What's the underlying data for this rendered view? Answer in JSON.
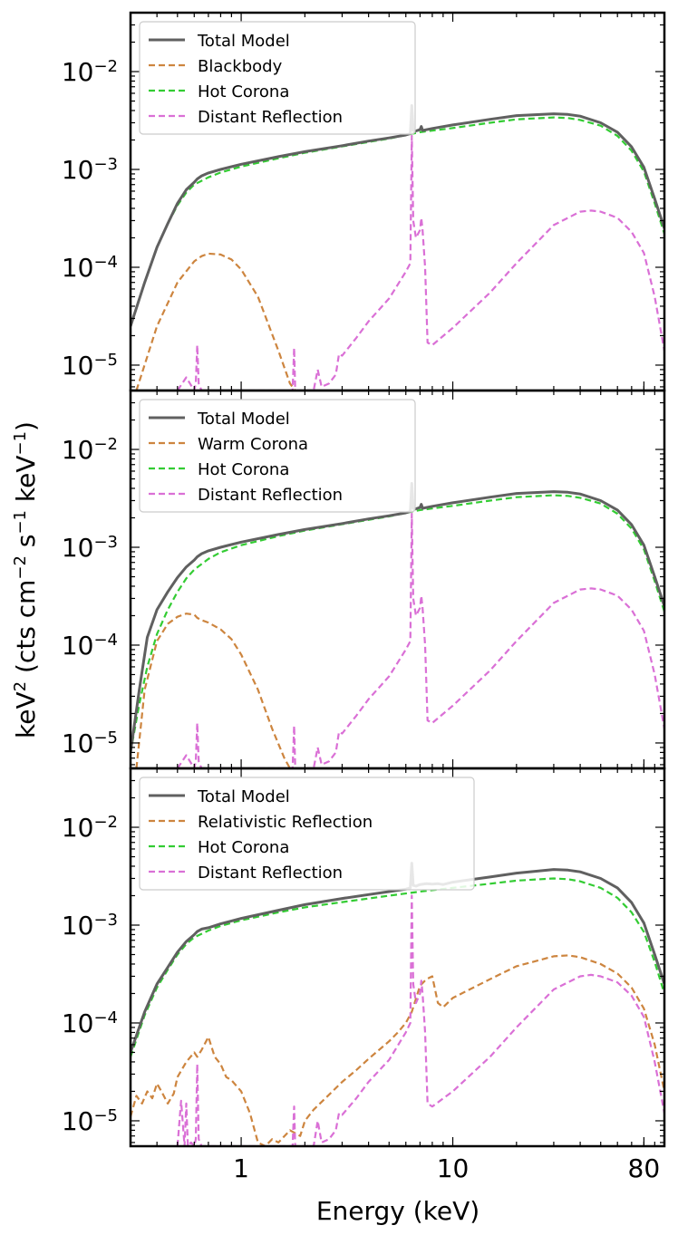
{
  "figure": {
    "ylabel_parts": [
      "keV",
      "2",
      " (cts cm",
      "−2",
      " s",
      "−1",
      " keV",
      "−1",
      ")"
    ],
    "xlabel": "Energy (keV)",
    "x_tick_labels": [
      "1",
      "10",
      "80"
    ],
    "y_tick_labels": [
      {
        "base": "10",
        "exp": "−2"
      },
      {
        "base": "10",
        "exp": "−3"
      },
      {
        "base": "10",
        "exp": "−4"
      },
      {
        "base": "10",
        "exp": "−5"
      }
    ]
  },
  "chart_data": [
    {
      "type": "line",
      "xscale": "log",
      "yscale": "log",
      "xlim": [
        0.3,
        100
      ],
      "ylim": [
        5.5e-06,
        0.04
      ],
      "x_ticks": [
        1,
        10,
        80
      ],
      "y_ticks": [
        0.01,
        0.001,
        0.0001,
        1e-05
      ],
      "legend_position": "top-left",
      "series": [
        {
          "name": "Total Model",
          "color": "#606060",
          "style": "solid",
          "x": [
            0.3,
            0.35,
            0.4,
            0.45,
            0.5,
            0.55,
            0.6,
            0.62,
            0.65,
            0.7,
            0.8,
            1,
            1.5,
            2,
            3,
            4,
            5,
            6,
            6.3,
            6.4,
            6.5,
            6.6,
            7,
            7.1,
            7.2,
            8,
            10,
            15,
            20,
            30,
            35,
            40,
            50,
            60,
            70,
            80,
            90,
            100
          ],
          "y": [
            2.5e-05,
            7e-05,
            0.00016,
            0.00028,
            0.00045,
            0.00062,
            0.00074,
            0.0008,
            0.00086,
            0.00092,
            0.001,
            0.00113,
            0.00135,
            0.00152,
            0.00175,
            0.00195,
            0.0021,
            0.00225,
            0.00232,
            0.0045,
            0.0025,
            0.00245,
            0.00255,
            0.00275,
            0.0025,
            0.00262,
            0.00285,
            0.00325,
            0.00355,
            0.0037,
            0.00365,
            0.0035,
            0.003,
            0.0024,
            0.0017,
            0.00105,
            0.0005,
            0.00025
          ]
        },
        {
          "name": "Blackbody",
          "color": "#cd853f",
          "style": "dashed",
          "x": [
            0.32,
            0.4,
            0.5,
            0.6,
            0.65,
            0.7,
            0.8,
            0.9,
            1.0,
            1.2,
            1.5,
            1.7,
            1.8
          ],
          "y": [
            5.5e-06,
            2.5e-05,
            7e-05,
            0.000115,
            0.00013,
            0.000138,
            0.000135,
            0.00012,
            9.5e-05,
            5e-05,
            1.4e-05,
            6.5e-06,
            5.5e-06
          ]
        },
        {
          "name": "Hot Corona",
          "color": "#33cc33",
          "style": "dashed",
          "x": [
            0.3,
            0.35,
            0.4,
            0.45,
            0.5,
            0.55,
            0.6,
            0.7,
            0.8,
            1,
            1.5,
            2,
            3,
            5,
            7,
            10,
            15,
            20,
            30,
            35,
            40,
            50,
            60,
            70,
            80,
            90,
            100
          ],
          "y": [
            2.5e-05,
            7e-05,
            0.00016,
            0.00028,
            0.00043,
            0.00058,
            0.0007,
            0.00083,
            0.00093,
            0.00107,
            0.0013,
            0.00148,
            0.00172,
            0.00207,
            0.0024,
            0.00265,
            0.003,
            0.00325,
            0.0034,
            0.00335,
            0.0032,
            0.0028,
            0.0022,
            0.00155,
            0.00095,
            0.00045,
            0.00022
          ]
        },
        {
          "name": "Distant Reflection",
          "color": "#da70d6",
          "style": "dashed",
          "x": [
            0.5,
            0.55,
            0.6,
            0.61,
            0.62,
            0.63,
            0.65,
            0.7,
            1.5,
            1.75,
            1.78,
            1.8,
            2.0,
            2.2,
            2.3,
            2.4,
            2.6,
            2.8,
            2.9,
            3.0,
            3.5,
            4,
            5,
            6,
            6.3,
            6.4,
            6.5,
            6.7,
            7.0,
            7.1,
            7.2,
            7.4,
            7.6,
            8,
            10,
            15,
            20,
            30,
            40,
            45,
            50,
            60,
            70,
            80,
            90,
            100
          ],
          "y": [
            5.5e-06,
            7.5e-06,
            5.5e-06,
            6.5e-06,
            1.6e-05,
            6.5e-06,
            5.5e-06,
            5.5e-06,
            5.5e-06,
            5.5e-06,
            1.5e-05,
            5.5e-06,
            5.5e-06,
            5.5e-06,
            9e-06,
            6e-06,
            6.5e-06,
            8e-06,
            1.3e-05,
            1.25e-05,
            1.9e-05,
            2.8e-05,
            4.8e-05,
            9e-05,
            0.00011,
            0.0022,
            0.0003,
            0.0002,
            0.00024,
            0.00032,
            0.00024,
            0.0001,
            1.7e-05,
            1.6e-05,
            2.4e-05,
            5.5e-05,
            0.00011,
            0.00027,
            0.00037,
            0.00038,
            0.00037,
            0.00032,
            0.00023,
            0.00014,
            5e-05,
            1.4e-05
          ]
        }
      ]
    },
    {
      "type": "line",
      "xscale": "log",
      "yscale": "log",
      "xlim": [
        0.3,
        100
      ],
      "ylim": [
        5.5e-06,
        0.04
      ],
      "x_ticks": [
        1,
        10,
        80
      ],
      "y_ticks": [
        0.01,
        0.001,
        0.0001,
        1e-05
      ],
      "legend_position": "top-left",
      "series": [
        {
          "name": "Total Model",
          "color": "#606060",
          "style": "solid",
          "x": [
            0.3,
            0.33,
            0.36,
            0.4,
            0.45,
            0.5,
            0.55,
            0.6,
            0.62,
            0.65,
            0.7,
            0.8,
            1,
            1.5,
            2,
            3,
            4,
            5,
            6,
            6.3,
            6.4,
            6.5,
            6.6,
            7,
            7.1,
            7.2,
            8,
            10,
            15,
            20,
            30,
            35,
            40,
            50,
            60,
            70,
            80,
            90,
            100
          ],
          "y": [
            8e-06,
            3.5e-05,
            0.00012,
            0.00023,
            0.00035,
            0.00049,
            0.00063,
            0.00074,
            0.0008,
            0.00086,
            0.00092,
            0.001,
            0.00113,
            0.00135,
            0.00152,
            0.00175,
            0.00195,
            0.0021,
            0.00225,
            0.00232,
            0.0045,
            0.0025,
            0.00245,
            0.00255,
            0.00275,
            0.0025,
            0.00262,
            0.00285,
            0.00325,
            0.00355,
            0.0037,
            0.00365,
            0.0035,
            0.003,
            0.0024,
            0.0017,
            0.00105,
            0.0005,
            0.00025
          ]
        },
        {
          "name": "Warm Corona",
          "color": "#cd853f",
          "style": "dashed",
          "x": [
            0.32,
            0.35,
            0.4,
            0.45,
            0.5,
            0.55,
            0.6,
            0.62,
            0.65,
            0.7,
            0.8,
            0.9,
            1.0,
            1.2,
            1.4,
            1.6,
            1.7
          ],
          "y": [
            5.5e-06,
            3.5e-05,
            0.00011,
            0.000165,
            0.000195,
            0.00021,
            0.000205,
            0.00019,
            0.00018,
            0.00017,
            0.000145,
            0.000115,
            8e-05,
            3.5e-05,
            1.4e-05,
            7e-06,
            5.5e-06
          ]
        },
        {
          "name": "Hot Corona",
          "color": "#33cc33",
          "style": "dashed",
          "x": [
            0.3,
            0.33,
            0.36,
            0.4,
            0.45,
            0.5,
            0.55,
            0.6,
            0.7,
            0.8,
            1,
            1.5,
            2,
            3,
            5,
            7,
            10,
            15,
            20,
            30,
            35,
            40,
            50,
            60,
            70,
            80,
            90,
            100
          ],
          "y": [
            8e-06,
            2.5e-05,
            6e-05,
            0.00013,
            0.00023,
            0.00035,
            0.00048,
            0.00059,
            0.00076,
            0.00089,
            0.00105,
            0.0013,
            0.00148,
            0.00172,
            0.00207,
            0.0024,
            0.00265,
            0.003,
            0.00325,
            0.0034,
            0.00335,
            0.0032,
            0.0028,
            0.0022,
            0.00155,
            0.00095,
            0.00045,
            0.00022
          ]
        },
        {
          "name": "Distant Reflection",
          "color": "#da70d6",
          "style": "dashed",
          "x": [
            0.5,
            0.55,
            0.6,
            0.61,
            0.62,
            0.63,
            0.65,
            0.7,
            1.5,
            1.75,
            1.78,
            1.8,
            2.0,
            2.2,
            2.3,
            2.4,
            2.6,
            2.8,
            2.9,
            3.0,
            3.5,
            4,
            5,
            6,
            6.3,
            6.4,
            6.5,
            6.7,
            7.0,
            7.1,
            7.2,
            7.4,
            7.6,
            8,
            10,
            15,
            20,
            30,
            40,
            45,
            50,
            60,
            70,
            80,
            90,
            100
          ],
          "y": [
            5.5e-06,
            7.5e-06,
            5.5e-06,
            6.5e-06,
            1.6e-05,
            6.5e-06,
            5.5e-06,
            5.5e-06,
            5.5e-06,
            5.5e-06,
            1.5e-05,
            5.5e-06,
            5.5e-06,
            5.5e-06,
            9e-06,
            6e-06,
            6.5e-06,
            8e-06,
            1.3e-05,
            1.25e-05,
            1.9e-05,
            2.8e-05,
            4.8e-05,
            9e-05,
            0.00011,
            0.0022,
            0.0003,
            0.0002,
            0.00024,
            0.00032,
            0.00024,
            0.0001,
            1.7e-05,
            1.6e-05,
            2.4e-05,
            5.5e-05,
            0.00011,
            0.00027,
            0.00037,
            0.00038,
            0.00037,
            0.00032,
            0.00023,
            0.00014,
            5e-05,
            1.4e-05
          ]
        }
      ]
    },
    {
      "type": "line",
      "xscale": "log",
      "yscale": "log",
      "xlim": [
        0.3,
        100
      ],
      "ylim": [
        5.5e-06,
        0.04
      ],
      "x_ticks": [
        1,
        10,
        80
      ],
      "y_ticks": [
        0.01,
        0.001,
        0.0001,
        1e-05
      ],
      "legend_position": "top-left",
      "series": [
        {
          "name": "Total Model",
          "color": "#606060",
          "style": "solid",
          "x": [
            0.3,
            0.35,
            0.4,
            0.45,
            0.5,
            0.55,
            0.6,
            0.62,
            0.65,
            0.7,
            0.8,
            1,
            1.5,
            2,
            3,
            4,
            5,
            6,
            6.3,
            6.4,
            6.5,
            6.7,
            7,
            7.5,
            8,
            8.5,
            9,
            10,
            15,
            20,
            30,
            35,
            40,
            50,
            60,
            70,
            80,
            90,
            100
          ],
          "y": [
            5e-05,
            0.00013,
            0.00025,
            0.00037,
            0.00053,
            0.00068,
            0.0008,
            0.00086,
            0.00091,
            0.00094,
            0.00103,
            0.00117,
            0.00142,
            0.00162,
            0.00187,
            0.00205,
            0.0022,
            0.00233,
            0.0024,
            0.0043,
            0.00255,
            0.0025,
            0.0026,
            0.00265,
            0.00262,
            0.00265,
            0.0026,
            0.00275,
            0.0031,
            0.0034,
            0.0037,
            0.00365,
            0.0035,
            0.003,
            0.0024,
            0.0017,
            0.00105,
            0.0005,
            0.00025
          ]
        },
        {
          "name": "Relativistic Reflection",
          "color": "#cd853f",
          "style": "dashed",
          "x": [
            0.3,
            0.32,
            0.34,
            0.36,
            0.38,
            0.4,
            0.42,
            0.45,
            0.48,
            0.5,
            0.55,
            0.6,
            0.62,
            0.65,
            0.7,
            0.75,
            0.8,
            0.85,
            0.9,
            1.0,
            1.1,
            1.2,
            1.3,
            1.4,
            1.5,
            1.7,
            1.9,
            2.0,
            2.2,
            2.5,
            3.0,
            3.5,
            4.0,
            5.0,
            5.5,
            6.0,
            6.4,
            6.6,
            7.0,
            7.5,
            8.0,
            8.5,
            9.0,
            10,
            15,
            20,
            30,
            35,
            40,
            50,
            60,
            70,
            80,
            90,
            100
          ],
          "y": [
            1.1e-05,
            1.8e-05,
            1.5e-05,
            2e-05,
            1.7e-05,
            2.4e-05,
            2e-05,
            1.5e-05,
            1.9e-05,
            2.8e-05,
            4e-05,
            5e-05,
            4.5e-05,
            5.3e-05,
            7.2e-05,
            4.5e-05,
            3.8e-05,
            2.8e-05,
            2.6e-05,
            2e-05,
            1.2e-05,
            6e-06,
            5.5e-06,
            6.5e-06,
            6e-06,
            8e-06,
            7e-06,
            1e-05,
            1.3e-05,
            1.7e-05,
            2.5e-05,
            3.3e-05,
            4.3e-05,
            6.5e-05,
            8e-05,
            0.0001,
            0.00013,
            0.00016,
            0.00024,
            0.00028,
            0.0003,
            0.00016,
            0.000145,
            0.00018,
            0.00028,
            0.00038,
            0.00048,
            0.00049,
            0.00047,
            0.0004,
            0.00032,
            0.00023,
            0.00014,
            6e-05,
            2e-05
          ]
        },
        {
          "name": "Hot Corona",
          "color": "#33cc33",
          "style": "dashed",
          "x": [
            0.3,
            0.35,
            0.4,
            0.45,
            0.5,
            0.55,
            0.6,
            0.7,
            0.8,
            1,
            1.5,
            2,
            3,
            5,
            7,
            10,
            15,
            20,
            30,
            35,
            40,
            50,
            60,
            70,
            80,
            90,
            100
          ],
          "y": [
            4.5e-05,
            0.00012,
            0.00023,
            0.00035,
            0.0005,
            0.00064,
            0.00075,
            0.00088,
            0.00098,
            0.00112,
            0.00135,
            0.00152,
            0.00172,
            0.002,
            0.0022,
            0.0024,
            0.00265,
            0.00285,
            0.003,
            0.00295,
            0.0028,
            0.0024,
            0.0019,
            0.00135,
            0.00085,
            0.00042,
            0.0002
          ]
        },
        {
          "name": "Distant Reflection",
          "color": "#da70d6",
          "style": "dashed",
          "x": [
            0.5,
            0.52,
            0.54,
            0.55,
            0.56,
            0.58,
            0.6,
            0.61,
            0.62,
            0.63,
            0.65,
            0.7,
            1.5,
            1.75,
            1.78,
            1.8,
            2.0,
            2.2,
            2.3,
            2.4,
            2.6,
            2.8,
            2.9,
            3.0,
            3.5,
            4,
            5,
            6,
            6.3,
            6.4,
            6.5,
            6.7,
            7.0,
            7.1,
            7.2,
            7.4,
            7.6,
            8,
            10,
            15,
            20,
            30,
            40,
            45,
            50,
            60,
            70,
            80,
            90,
            100
          ],
          "y": [
            5.5e-06,
            1.6e-05,
            5.5e-06,
            1.5e-05,
            5.5e-06,
            6e-06,
            5.5e-06,
            6.5e-06,
            3.8e-05,
            6.5e-06,
            5.5e-06,
            5.5e-06,
            5.5e-06,
            5.5e-06,
            1.4e-05,
            5.5e-06,
            5.5e-06,
            5.5e-06,
            1e-05,
            6e-06,
            6.5e-06,
            8e-06,
            1.2e-05,
            1.15e-05,
            1.7e-05,
            2.5e-05,
            4.2e-05,
            8e-05,
            0.0001,
            0.002,
            0.00025,
            0.00016,
            0.0002,
            0.00027,
            0.0002,
            8e-05,
            1.5e-05,
            1.4e-05,
            2e-05,
            4.5e-05,
            9e-05,
            0.00022,
            0.0003,
            0.00031,
            0.0003,
            0.00026,
            0.00019,
            0.000115,
            4e-05,
            1.2e-05
          ]
        }
      ]
    }
  ]
}
